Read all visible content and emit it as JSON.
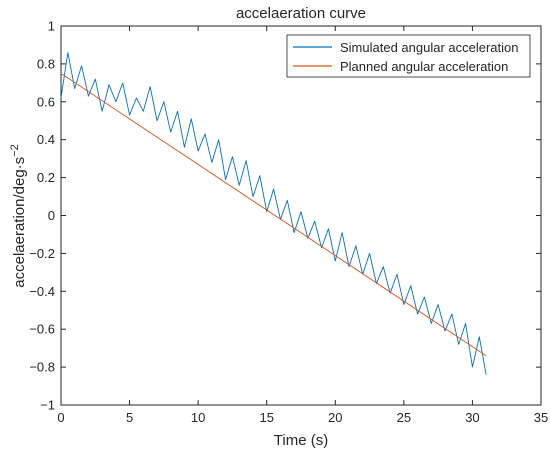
{
  "chart_data": {
    "type": "line",
    "title": "accelaeration curve",
    "xlabel": "Time (s)",
    "ylabel": "accelaeration/deg·s",
    "ylabel_exponent": "−2",
    "xlim": [
      0,
      35
    ],
    "ylim": [
      -1,
      1
    ],
    "x_ticks": [
      0,
      5,
      10,
      15,
      20,
      25,
      30,
      35
    ],
    "x_tick_labels": [
      "0",
      "5",
      "10",
      "15",
      "20",
      "25",
      "30",
      "35"
    ],
    "y_ticks": [
      -1,
      -0.8,
      -0.6,
      -0.4,
      -0.2,
      0,
      0.2,
      0.4,
      0.6,
      0.8,
      1
    ],
    "y_tick_labels": [
      "−1",
      "−0.8",
      "−0.6",
      "−0.4",
      "−0.2",
      "0",
      "0.2",
      "0.4",
      "0.6",
      "0.8",
      "1"
    ],
    "grid": false,
    "legend_position": "top-right",
    "series": [
      {
        "name": "Simulated angular acceleration",
        "color": "#0072BD",
        "x": [
          0,
          0.5,
          1,
          1.5,
          2,
          2.5,
          3,
          3.5,
          4,
          4.5,
          5,
          5.5,
          6,
          6.5,
          7,
          7.5,
          8,
          8.5,
          9,
          9.5,
          10,
          10.5,
          11,
          11.5,
          12,
          12.5,
          13,
          13.5,
          14,
          14.5,
          15,
          15.5,
          16,
          16.5,
          17,
          17.5,
          18,
          18.5,
          19,
          19.5,
          20,
          20.5,
          21,
          21.5,
          22,
          22.5,
          23,
          23.5,
          24,
          24.5,
          25,
          25.5,
          26,
          26.5,
          27,
          27.5,
          28,
          28.5,
          29,
          29.5,
          30,
          30.5,
          31
        ],
        "y": [
          0.62,
          0.86,
          0.67,
          0.79,
          0.63,
          0.72,
          0.55,
          0.69,
          0.6,
          0.7,
          0.53,
          0.62,
          0.55,
          0.68,
          0.5,
          0.6,
          0.44,
          0.55,
          0.36,
          0.51,
          0.34,
          0.43,
          0.28,
          0.4,
          0.19,
          0.31,
          0.16,
          0.29,
          0.1,
          0.21,
          0.02,
          0.14,
          -0.02,
          0.08,
          -0.09,
          0.02,
          -0.12,
          -0.03,
          -0.17,
          -0.07,
          -0.24,
          -0.09,
          -0.27,
          -0.16,
          -0.31,
          -0.2,
          -0.36,
          -0.27,
          -0.41,
          -0.31,
          -0.47,
          -0.37,
          -0.52,
          -0.43,
          -0.57,
          -0.47,
          -0.61,
          -0.52,
          -0.68,
          -0.57,
          -0.8,
          -0.64,
          -0.84
        ]
      },
      {
        "name": "Planned angular acceleration",
        "color": "#D95319",
        "x": [
          0,
          31
        ],
        "y": [
          0.75,
          -0.74
        ]
      }
    ]
  }
}
